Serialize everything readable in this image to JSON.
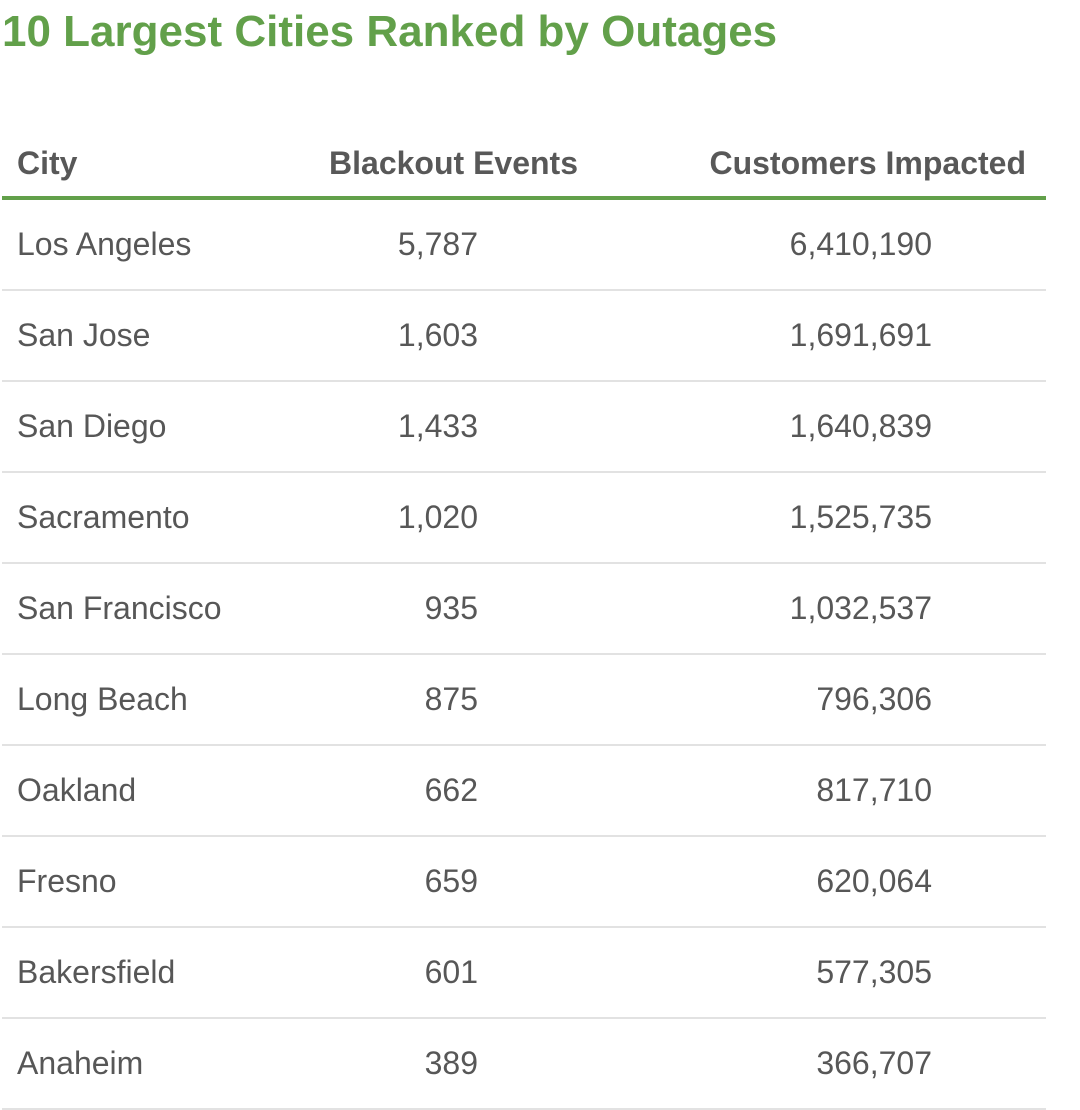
{
  "title": "10 Largest Cities Ranked by Outages",
  "colors": {
    "title": "#62a04a",
    "header_rule": "#62a04a",
    "row_divider": "#e2e2e2",
    "text": "#575757"
  },
  "chart_data": {
    "type": "table",
    "title": "10 Largest Cities Ranked by Outages",
    "columns": [
      "City",
      "Blackout Events",
      "Customers Impacted"
    ],
    "rows": [
      [
        "Los Angeles",
        "5,787",
        "6,410,190"
      ],
      [
        "San Jose",
        "1,603",
        "1,691,691"
      ],
      [
        "San Diego",
        "1,433",
        "1,640,839"
      ],
      [
        "Sacramento",
        "1,020",
        "1,525,735"
      ],
      [
        "San Francisco",
        "935",
        "1,032,537"
      ],
      [
        "Long Beach",
        "875",
        "796,306"
      ],
      [
        "Oakland",
        "662",
        "817,710"
      ],
      [
        "Fresno",
        "659",
        "620,064"
      ],
      [
        "Bakersfield",
        "601",
        "577,305"
      ],
      [
        "Anaheim",
        "389",
        "366,707"
      ]
    ]
  }
}
